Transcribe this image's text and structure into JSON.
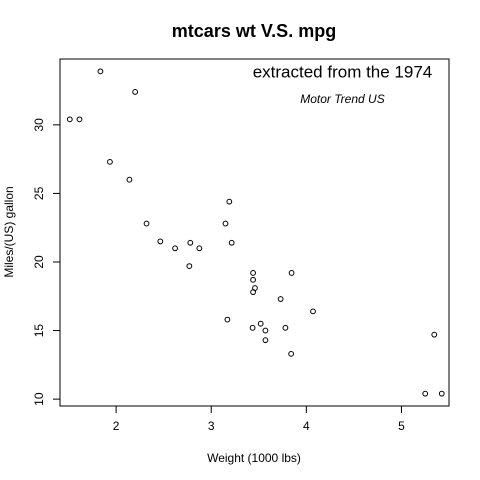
{
  "chart_data": {
    "type": "scatter",
    "title": "mtcars wt V.S. mpg",
    "xlabel": "Weight (1000 lbs)",
    "ylabel": "Miles/(US) gallon",
    "xlim": [
      1.41,
      5.5
    ],
    "ylim": [
      9.5,
      34.8
    ],
    "xticks": [
      2,
      3,
      4,
      5
    ],
    "yticks": [
      10,
      15,
      20,
      25,
      30
    ],
    "grid": false,
    "annotations": [
      {
        "text": "extracted from the 1974",
        "x": 4.38,
        "y": 33.9
      },
      {
        "text": "Motor Trend US",
        "x": 4.38,
        "y": 31.9
      }
    ],
    "points": [
      {
        "x": 2.62,
        "y": 21.0
      },
      {
        "x": 2.875,
        "y": 21.0
      },
      {
        "x": 2.32,
        "y": 22.8
      },
      {
        "x": 3.215,
        "y": 21.4
      },
      {
        "x": 3.44,
        "y": 18.7
      },
      {
        "x": 3.46,
        "y": 18.1
      },
      {
        "x": 3.57,
        "y": 14.3
      },
      {
        "x": 3.19,
        "y": 24.4
      },
      {
        "x": 3.15,
        "y": 22.8
      },
      {
        "x": 3.44,
        "y": 19.2
      },
      {
        "x": 3.44,
        "y": 17.8
      },
      {
        "x": 4.07,
        "y": 16.4
      },
      {
        "x": 3.73,
        "y": 17.3
      },
      {
        "x": 3.78,
        "y": 15.2
      },
      {
        "x": 5.25,
        "y": 10.4
      },
      {
        "x": 5.424,
        "y": 10.4
      },
      {
        "x": 5.345,
        "y": 14.7
      },
      {
        "x": 2.2,
        "y": 32.4
      },
      {
        "x": 1.615,
        "y": 30.4
      },
      {
        "x": 1.835,
        "y": 33.9
      },
      {
        "x": 2.465,
        "y": 21.5
      },
      {
        "x": 3.52,
        "y": 15.5
      },
      {
        "x": 3.435,
        "y": 15.2
      },
      {
        "x": 3.84,
        "y": 13.3
      },
      {
        "x": 3.845,
        "y": 19.2
      },
      {
        "x": 1.935,
        "y": 27.3
      },
      {
        "x": 2.14,
        "y": 26.0
      },
      {
        "x": 1.513,
        "y": 30.4
      },
      {
        "x": 3.17,
        "y": 15.8
      },
      {
        "x": 2.77,
        "y": 19.7
      },
      {
        "x": 3.57,
        "y": 15.0
      },
      {
        "x": 2.78,
        "y": 21.4
      }
    ]
  }
}
